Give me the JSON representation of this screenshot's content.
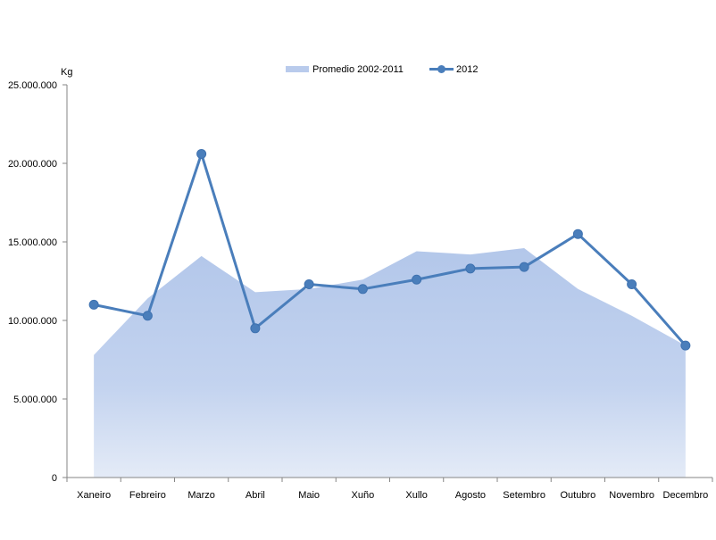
{
  "chart_data": {
    "type": "line",
    "y_unit_label": "Kg",
    "categories": [
      "Xaneiro",
      "Febreiro",
      "Marzo",
      "Abril",
      "Maio",
      "Xuño",
      "Xullo",
      "Agosto",
      "Setembro",
      "Outubro",
      "Novembro",
      "Decembro"
    ],
    "y_ticks": [
      "0",
      "5.000.000",
      "10.000.000",
      "15.000.000",
      "20.000.000",
      "25.000.000"
    ],
    "ylim": [
      0,
      25000000
    ],
    "grid": false,
    "legend_position": "top-center",
    "series": [
      {
        "name": "Promedio 2002-2011",
        "type": "area",
        "color": "#b9cbec",
        "values": [
          7800000,
          11400000,
          14100000,
          11800000,
          12000000,
          12600000,
          14400000,
          14200000,
          14600000,
          12000000,
          10300000,
          8400000
        ]
      },
      {
        "name": "2012",
        "type": "line",
        "color": "#4a7ebb",
        "values": [
          11000000,
          10300000,
          20600000,
          9500000,
          12300000,
          12000000,
          12600000,
          13300000,
          13400000,
          15500000,
          12300000,
          8400000
        ]
      }
    ]
  }
}
